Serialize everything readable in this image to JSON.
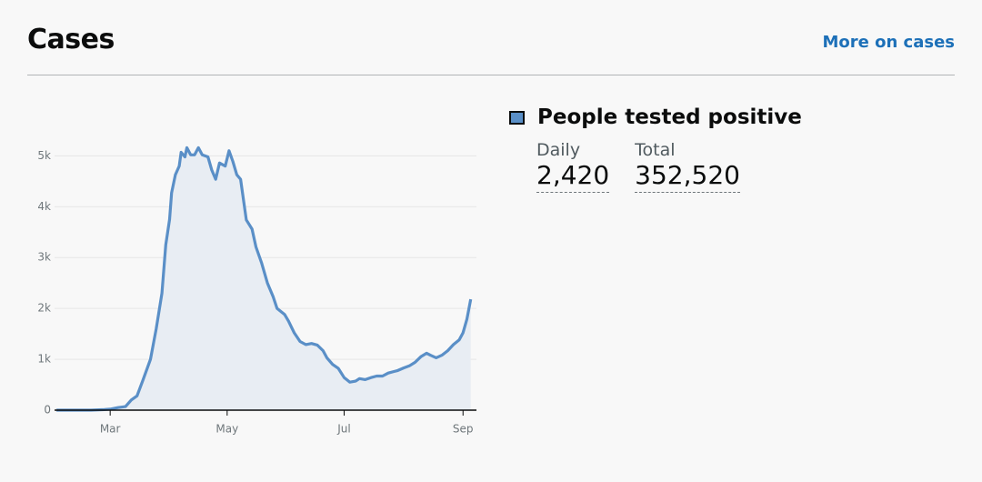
{
  "header": {
    "title": "Cases",
    "link": "More on cases"
  },
  "stats": {
    "heading": "People tested positive",
    "daily_label": "Daily",
    "daily_value": "2,420",
    "total_label": "Total",
    "total_value": "352,520"
  },
  "chart_data": {
    "type": "line",
    "x": [
      1,
      10,
      19,
      26,
      29,
      33,
      37,
      40,
      43,
      46,
      50,
      53,
      56,
      58,
      60,
      61,
      63,
      65,
      66,
      68,
      69,
      71,
      73,
      75,
      77,
      80,
      82,
      84,
      86,
      89,
      91,
      93,
      95,
      97,
      100,
      103,
      105,
      108,
      111,
      114,
      116,
      120,
      122,
      125,
      128,
      131,
      134,
      137,
      140,
      142,
      145,
      148,
      151,
      154,
      157,
      159,
      162,
      165,
      168,
      171,
      174,
      177,
      179,
      182,
      185,
      188,
      191,
      194,
      196,
      199,
      202,
      205,
      208,
      211,
      213,
      215,
      217
    ],
    "series": [
      {
        "name": "People tested positive",
        "color": "#5a8fc7",
        "values": [
          0,
          0,
          0,
          10,
          20,
          50,
          70,
          200,
          280,
          580,
          1000,
          1600,
          2300,
          3250,
          3750,
          4270,
          4630,
          4800,
          5070,
          4980,
          5160,
          5020,
          5020,
          5160,
          5020,
          4980,
          4720,
          4540,
          4860,
          4800,
          5100,
          4890,
          4630,
          4540,
          3740,
          3560,
          3210,
          2890,
          2500,
          2230,
          2000,
          1880,
          1750,
          1520,
          1350,
          1290,
          1310,
          1280,
          1170,
          1030,
          900,
          820,
          640,
          550,
          570,
          620,
          600,
          640,
          670,
          670,
          730,
          760,
          780,
          830,
          870,
          940,
          1050,
          1120,
          1080,
          1030,
          1080,
          1170,
          1290,
          1380,
          1520,
          1790,
          2180
        ]
      }
    ],
    "xlim": [
      0,
      220
    ],
    "xticks": [
      {
        "value": 29,
        "label": "Mar"
      },
      {
        "value": 90,
        "label": "May"
      },
      {
        "value": 151,
        "label": "Jul"
      },
      {
        "value": 213,
        "label": "Sep"
      }
    ],
    "ylim": [
      0,
      5400
    ],
    "yticks": [
      0,
      {
        "value": 1000,
        "label": "1k"
      },
      {
        "value": 2000,
        "label": "2k"
      },
      {
        "value": 3000,
        "label": "3k"
      },
      {
        "value": 4000,
        "label": "4k"
      },
      {
        "value": 5000,
        "label": "5k"
      }
    ],
    "grid": true,
    "fill": "#e8edf3"
  }
}
